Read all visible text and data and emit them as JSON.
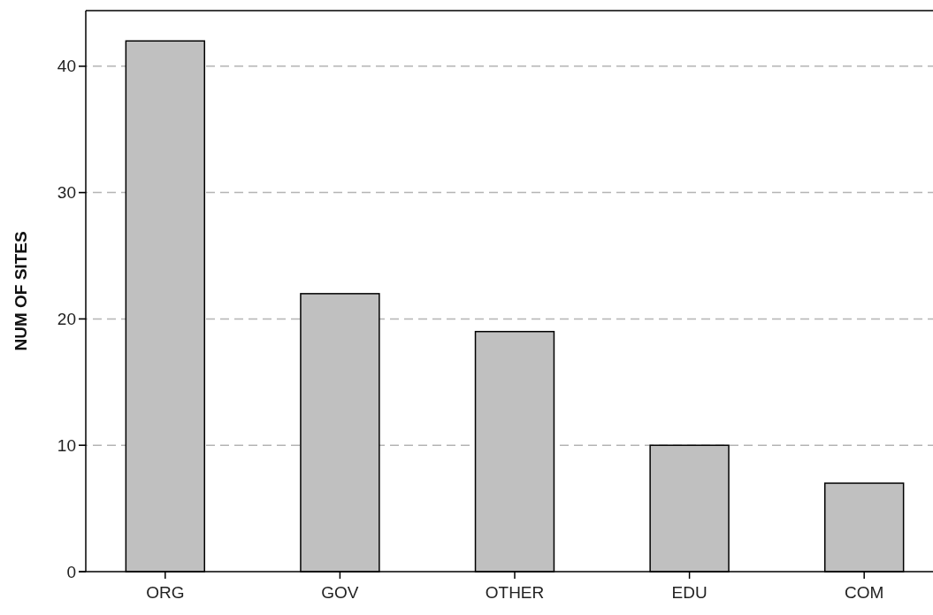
{
  "chart_data": {
    "type": "bar",
    "ylabel": "NUM OF SITES",
    "categories": [
      "ORG",
      "GOV",
      "OTHER",
      "EDU",
      "COM"
    ],
    "values": [
      42,
      22,
      19,
      10,
      7
    ],
    "color": "#c0c0c0",
    "ylim": [
      0,
      44.4
    ],
    "yticks": [
      0,
      10,
      20,
      30,
      40
    ],
    "grid": "y"
  }
}
